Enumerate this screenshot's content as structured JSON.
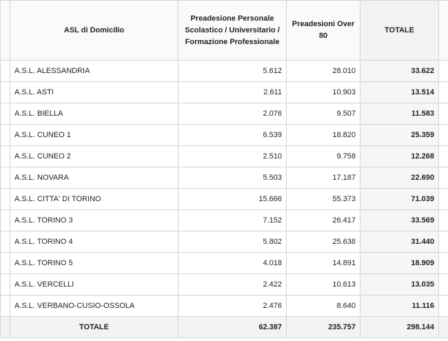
{
  "table": {
    "header": [
      "ASL di Domicilio",
      "Preadesione Personale Scolastico / Universitario / Formazione Professionale",
      "Preadesioni Over 80",
      "TOTALE"
    ],
    "rows": [
      [
        "A.S.L. ALESSANDRIA",
        "5.612",
        "28.010",
        "33.622"
      ],
      [
        "A.S.L. ASTI",
        "2.611",
        "10.903",
        "13.514"
      ],
      [
        "A.S.L. BIELLA",
        "2.076",
        "9.507",
        "11.583"
      ],
      [
        "A.S.L. CUNEO 1",
        "6.539",
        "18.820",
        "25.359"
      ],
      [
        "A.S.L. CUNEO 2",
        "2.510",
        "9.758",
        "12.268"
      ],
      [
        "A.S.L. NOVARA",
        "5.503",
        "17.187",
        "22.690"
      ],
      [
        "A.S.L. CITTA' DI TORINO",
        "15.666",
        "55.373",
        "71.039"
      ],
      [
        "A.S.L. TORINO 3",
        "7.152",
        "26.417",
        "33.569"
      ],
      [
        "A.S.L. TORINO 4",
        "5.802",
        "25.638",
        "31.440"
      ],
      [
        "A.S.L. TORINO 5",
        "4.018",
        "14.891",
        "18.909"
      ],
      [
        "A.S.L. VERCELLI",
        "2.422",
        "10.613",
        "13.035"
      ],
      [
        "A.S.L. VERBANO-CUSIO-OSSOLA",
        "2.476",
        "8.640",
        "11.116"
      ]
    ],
    "total": [
      "TOTALE",
      "62.387",
      "235.757",
      "298.144"
    ]
  }
}
